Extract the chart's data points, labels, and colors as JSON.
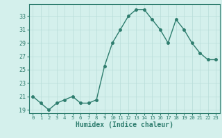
{
  "x": [
    0,
    1,
    2,
    3,
    4,
    5,
    6,
    7,
    8,
    9,
    10,
    11,
    12,
    13,
    14,
    15,
    16,
    17,
    18,
    19,
    20,
    21,
    22,
    23
  ],
  "y": [
    21,
    20,
    19,
    20,
    20.5,
    21,
    20,
    20,
    20.5,
    25.5,
    29,
    31,
    33,
    34,
    34,
    32.5,
    31,
    29,
    32.5,
    31,
    29,
    27.5,
    26.5,
    26.5
  ],
  "line_color": "#2e7d6e",
  "marker": "o",
  "markersize": 2.5,
  "linewidth": 1.0,
  "bg_color": "#d4f0ec",
  "grid_color": "#b8ddd8",
  "xlabel": "Humidex (Indice chaleur)",
  "ylabel": "",
  "yticks": [
    19,
    21,
    23,
    25,
    27,
    29,
    31,
    33
  ],
  "xticks": [
    0,
    1,
    2,
    3,
    4,
    5,
    6,
    7,
    8,
    9,
    10,
    11,
    12,
    13,
    14,
    15,
    16,
    17,
    18,
    19,
    20,
    21,
    22,
    23
  ],
  "ylim": [
    18.5,
    34.8
  ],
  "xlim": [
    -0.5,
    23.5
  ],
  "xlabel_fontsize": 7,
  "ytick_fontsize": 6,
  "xtick_fontsize": 5.2
}
